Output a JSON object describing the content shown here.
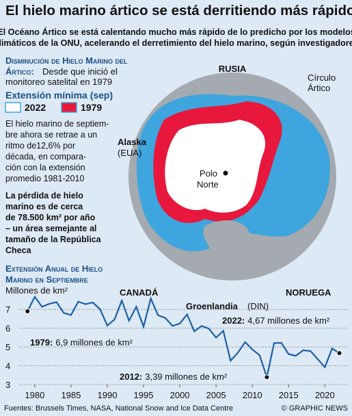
{
  "title": "El hielo marino ártico se está derritiendo más rápido",
  "subtitle_lines": [
    "El Océano Ártico se está calentando mucho más rápido de lo predicho por los modelos",
    "climáticos de la ONU, acelerando el derretimiento del hielo marino, según investigadores"
  ],
  "panel": {
    "heading_lines": [
      "Disminución de Hielo Marino del",
      "Ártico:"
    ],
    "intro_lines": [
      "Desde que inició el",
      "monitoreo satelital en 1979"
    ],
    "legend_title": "Extensión mínima (sep)",
    "legend": [
      {
        "label": "2022",
        "color": "#ffffff"
      },
      {
        "label": "1979",
        "color": "#e8173c"
      }
    ],
    "paragraph_lines": [
      "El hielo marino de septiem-",
      "bre ahora se retrae a un",
      "ritmo de12,6% por",
      "década, en compara-",
      "ción con la extensión",
      "promedio 1981-2010"
    ],
    "bold_lines": [
      "La pérdida de hielo",
      "marino es de cerca",
      "de 78.500 km² por año",
      "– un área semejante al",
      "tamaño de la República",
      "Checa"
    ]
  },
  "map_labels": {
    "russia": "RUSIA",
    "circle_lines": [
      "Círculo",
      "Ártico"
    ],
    "alaska": "Alaska",
    "alaska_country": "(EUA)",
    "pole_lines": [
      "Polo",
      "Norte"
    ],
    "canada": "CANADÁ",
    "greenland": "Groenlandia",
    "greenland_country": "(DIN)",
    "norway": "NORUEGA"
  },
  "chart_data": {
    "type": "line",
    "title_lines": [
      "Extensión Anual de Hielo",
      "Marino en Septiembre"
    ],
    "y_label": "Millones de km²",
    "x": [
      1979,
      1980,
      1981,
      1982,
      1983,
      1984,
      1985,
      1986,
      1987,
      1988,
      1989,
      1990,
      1991,
      1992,
      1993,
      1994,
      1995,
      1996,
      1997,
      1998,
      1999,
      2000,
      2001,
      2002,
      2003,
      2004,
      2005,
      2006,
      2007,
      2008,
      2009,
      2010,
      2011,
      2012,
      2013,
      2014,
      2015,
      2016,
      2017,
      2018,
      2019,
      2020,
      2021,
      2022
    ],
    "series": [
      {
        "name": "Extensión",
        "color": "#1a5fa8",
        "values": [
          6.9,
          7.67,
          7.14,
          7.3,
          7.39,
          6.81,
          6.7,
          7.41,
          7.28,
          7.37,
          7.01,
          6.14,
          6.47,
          7.47,
          6.4,
          7.14,
          6.08,
          7.58,
          6.69,
          6.54,
          6.12,
          6.25,
          6.73,
          5.83,
          6.12,
          5.98,
          5.5,
          5.86,
          4.27,
          4.69,
          5.26,
          4.87,
          4.56,
          3.39,
          5.21,
          5.22,
          4.62,
          4.53,
          4.82,
          4.79,
          4.36,
          3.92,
          4.92,
          4.67
        ]
      }
    ],
    "xlim": [
      1978.6,
      2022.8
    ],
    "ylim": [
      3,
      7.7
    ],
    "xticks": [
      1980,
      1985,
      1990,
      1995,
      2000,
      2005,
      2010,
      2015,
      2020
    ],
    "yticks": [
      3,
      4,
      5,
      6,
      7
    ],
    "grid": true,
    "annotations": [
      {
        "index": 0,
        "year": "1979:",
        "text": "6,9 millones de km²"
      },
      {
        "index": 43,
        "year": "2022:",
        "text": "4,67 millones de km²"
      },
      {
        "index": 33,
        "year": "2012:",
        "text": "3,39 millones de km²"
      }
    ]
  },
  "footer": {
    "sources": "Fuentes: Brussels Times, NASA, National Snow and Ice Data Centre",
    "credit": "© GRAPHIC NEWS"
  }
}
